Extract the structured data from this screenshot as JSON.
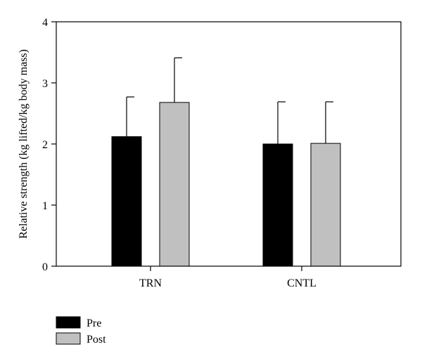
{
  "chart_data": {
    "type": "bar",
    "ylabel": "Relative strength (kg lifted/kg body mass)",
    "xlabel": "",
    "ylim": [
      0,
      4
    ],
    "yticks": [
      "0",
      "1",
      "2",
      "3",
      "4"
    ],
    "categories": [
      "TRN",
      "CNTL"
    ],
    "series": [
      {
        "name": "Pre",
        "values": [
          2.12,
          2.0
        ],
        "errors": [
          0.65,
          0.69
        ],
        "color": "#000000"
      },
      {
        "name": "Post",
        "values": [
          2.68,
          2.01
        ],
        "errors": [
          0.73,
          0.68
        ],
        "color": "#c0c0c0"
      }
    ],
    "grid": false,
    "legend_position": "bottom-left"
  }
}
